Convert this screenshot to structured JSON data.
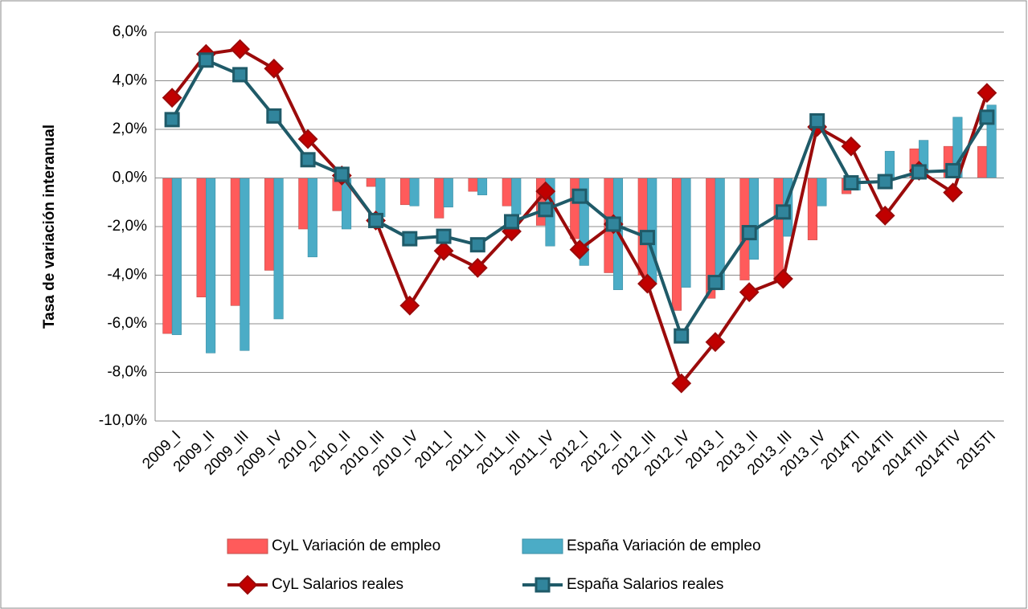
{
  "chart_data": {
    "type": "combo",
    "y_label": "Tasa de variación interanual",
    "categories": [
      "2009_I",
      "2009_II",
      "2009_III",
      "2009_IV",
      "2010_I",
      "2010_II",
      "2010_III",
      "2010_IV",
      "2011_I",
      "2011_II",
      "2011_III",
      "2011_IV",
      "2012_I",
      "2012_II",
      "2012_III",
      "2012_IV",
      "2013_I",
      "2013_II",
      "2013_III",
      "2013_IV",
      "2014TI",
      "2014TII",
      "2014TIII",
      "2014TIV",
      "2015TI"
    ],
    "series": [
      {
        "name": "CyL Variación de empleo",
        "kind": "bar",
        "color": "#ff5b5b",
        "values": [
          -6.4,
          -4.9,
          -5.25,
          -3.8,
          -2.1,
          -1.35,
          -0.35,
          -1.1,
          -1.65,
          -0.55,
          -1.15,
          -1.95,
          -2.5,
          -3.9,
          -4.0,
          -5.45,
          -4.95,
          -4.2,
          -4.3,
          -2.55,
          -0.65,
          0.0,
          1.2,
          1.3,
          1.3
        ]
      },
      {
        "name": "España Variación de empleo",
        "kind": "bar",
        "color": "#4bacc6",
        "values": [
          -6.45,
          -7.2,
          -7.1,
          -5.8,
          -3.25,
          -2.1,
          -1.6,
          -1.15,
          -1.2,
          -0.7,
          -1.5,
          -2.8,
          -3.6,
          -4.6,
          -4.3,
          -4.5,
          -4.6,
          -3.35,
          -2.4,
          -1.15,
          -0.5,
          1.1,
          1.55,
          2.5,
          3.0
        ]
      },
      {
        "name": "CyL Salarios reales",
        "kind": "line",
        "marker": "diamond",
        "color": "#9b0b0b",
        "values": [
          3.3,
          5.1,
          5.3,
          4.5,
          1.6,
          0.1,
          -1.75,
          -5.25,
          -3.0,
          -3.7,
          -2.2,
          -0.55,
          -2.95,
          -1.9,
          -4.35,
          -8.45,
          -6.75,
          -4.7,
          -4.15,
          2.1,
          1.3,
          -1.55,
          0.3,
          -0.6,
          3.5
        ]
      },
      {
        "name": "España Salarios reales",
        "kind": "line",
        "marker": "square",
        "color": "#1f5a68",
        "values": [
          2.4,
          4.85,
          4.25,
          2.55,
          0.75,
          0.15,
          -1.75,
          -2.5,
          -2.4,
          -2.75,
          -1.8,
          -1.3,
          -0.75,
          -1.9,
          -2.45,
          -6.5,
          -4.3,
          -2.25,
          -1.4,
          2.35,
          -0.2,
          -0.15,
          0.25,
          0.3,
          2.5
        ]
      }
    ],
    "ylim": [
      -10,
      6
    ],
    "yticks": [
      {
        "value": -10,
        "label": "-10,0%"
      },
      {
        "value": -8,
        "label": "-8,0%"
      },
      {
        "value": -6,
        "label": "-6,0%"
      },
      {
        "value": -4,
        "label": "-4,0%"
      },
      {
        "value": -2,
        "label": "-2,0%"
      },
      {
        "value": 0,
        "label": "0,0%"
      },
      {
        "value": 2,
        "label": "2,0%"
      },
      {
        "value": 4,
        "label": "4,0%"
      },
      {
        "value": 6,
        "label": "6,0%"
      }
    ],
    "grid": true
  }
}
